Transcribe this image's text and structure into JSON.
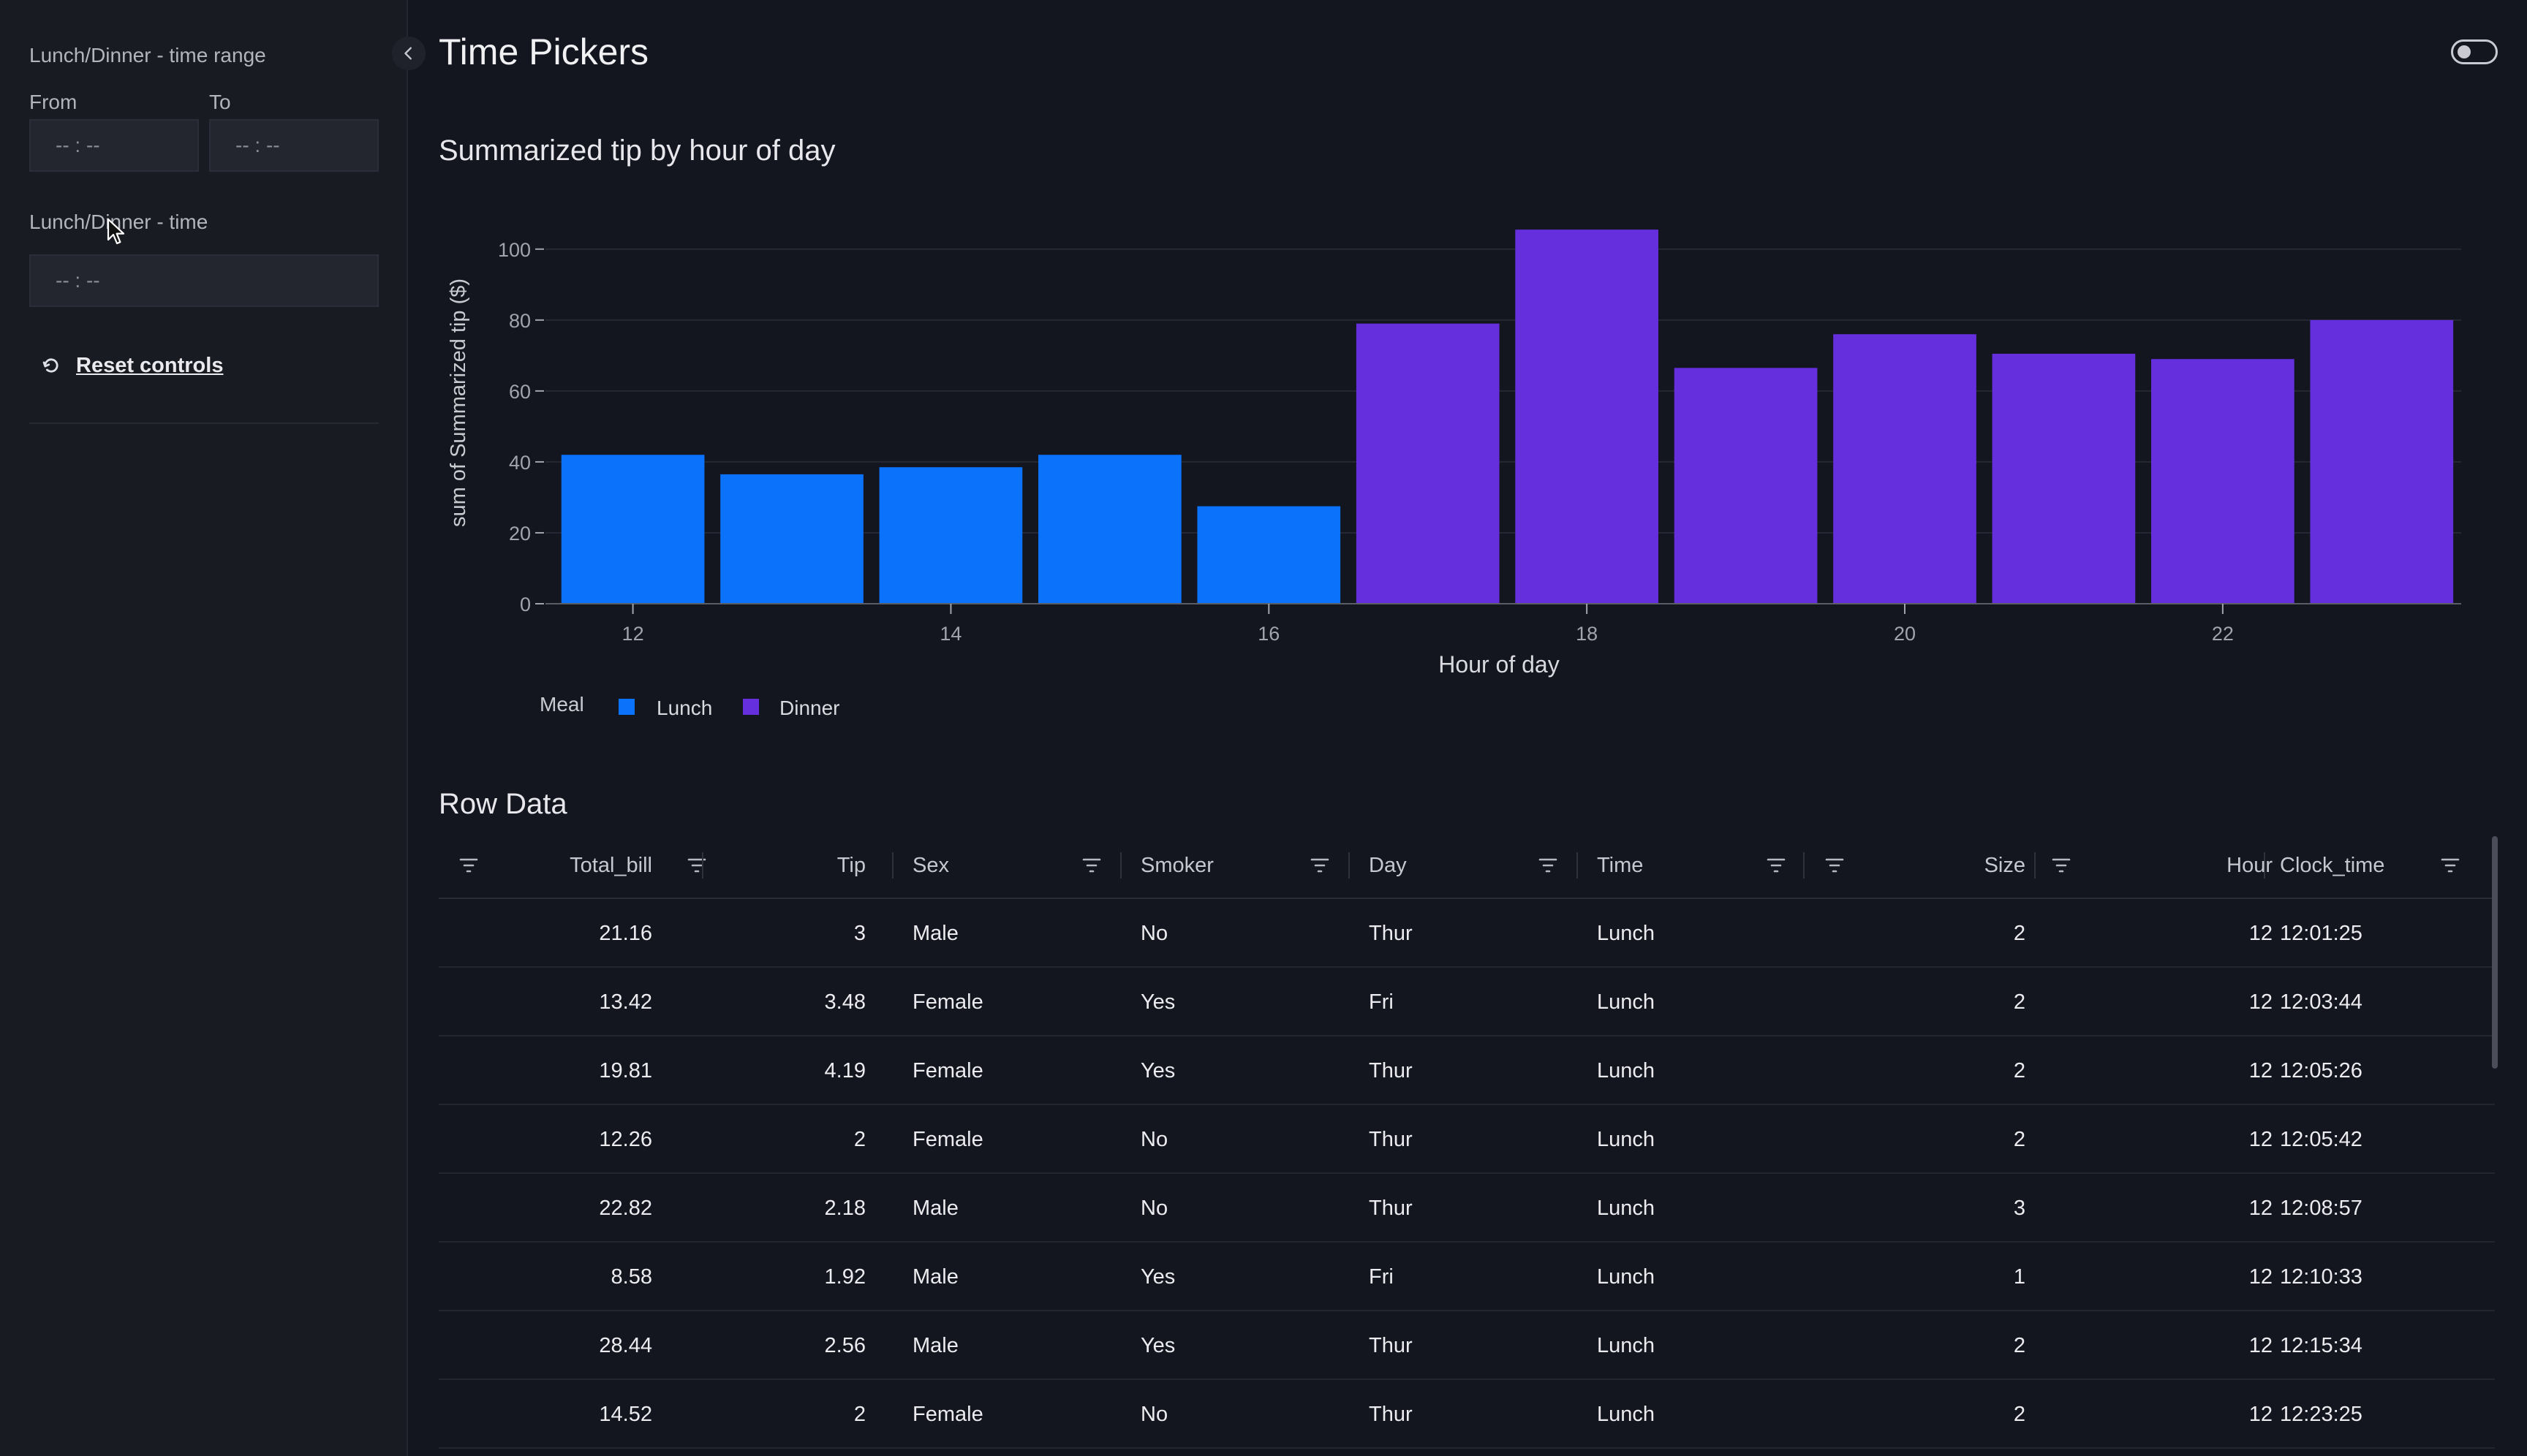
{
  "sidebar": {
    "range_label": "Lunch/Dinner - time range",
    "from_label": "From",
    "to_label": "To",
    "from_placeholder": "-- : --",
    "to_placeholder": "-- : --",
    "time_label": "Lunch/Dinner - time",
    "time_placeholder": "-- : --",
    "reset_label": "Reset controls"
  },
  "header": {
    "title": "Time Pickers"
  },
  "chart_section": {
    "title": "Summarized tip by hour of day"
  },
  "chart_data": {
    "type": "bar",
    "title": "Summarized tip by hour of day",
    "xlabel": "Hour of day",
    "ylabel": "sum of Summarized tip ($)",
    "x": [
      12,
      13,
      14,
      15,
      16,
      17,
      18,
      19,
      20,
      21,
      22,
      23
    ],
    "series": [
      {
        "name": "Lunch",
        "x": [
          12,
          13,
          14,
          15,
          16
        ],
        "values": [
          42,
          36.5,
          38.5,
          42,
          27.5
        ]
      },
      {
        "name": "Dinner",
        "x": [
          17,
          18,
          19,
          20,
          21,
          22,
          23
        ],
        "values": [
          79,
          105.5,
          66.5,
          76,
          70.5,
          69,
          80
        ]
      }
    ],
    "ylim": [
      0,
      108
    ],
    "xlim": [
      11.45,
      23.5
    ],
    "yticks": [
      0,
      20,
      40,
      60,
      80,
      100
    ],
    "xticks": [
      12,
      14,
      16,
      18,
      20,
      22
    ],
    "legend": {
      "title": "Meal",
      "position": "bottom-left"
    },
    "colors": {
      "Lunch": "#0b72fb",
      "Dinner": "#652fdd",
      "grid": "#252834",
      "axis": "#a2a4ad"
    },
    "grid": true
  },
  "table": {
    "title": "Row Data",
    "columns": [
      "Total_bill",
      "Tip",
      "Sex",
      "Smoker",
      "Day",
      "Time",
      "Size",
      "Hour",
      "Clock_time"
    ],
    "rows": [
      [
        "21.16",
        "3",
        "Male",
        "No",
        "Thur",
        "Lunch",
        "2",
        "12",
        "12:01:25"
      ],
      [
        "13.42",
        "3.48",
        "Female",
        "Yes",
        "Fri",
        "Lunch",
        "2",
        "12",
        "12:03:44"
      ],
      [
        "19.81",
        "4.19",
        "Female",
        "Yes",
        "Thur",
        "Lunch",
        "2",
        "12",
        "12:05:26"
      ],
      [
        "12.26",
        "2",
        "Female",
        "No",
        "Thur",
        "Lunch",
        "2",
        "12",
        "12:05:42"
      ],
      [
        "22.82",
        "2.18",
        "Male",
        "No",
        "Thur",
        "Lunch",
        "3",
        "12",
        "12:08:57"
      ],
      [
        "8.58",
        "1.92",
        "Male",
        "Yes",
        "Fri",
        "Lunch",
        "1",
        "12",
        "12:10:33"
      ],
      [
        "28.44",
        "2.56",
        "Male",
        "Yes",
        "Thur",
        "Lunch",
        "2",
        "12",
        "12:15:34"
      ],
      [
        "14.52",
        "2",
        "Female",
        "No",
        "Thur",
        "Lunch",
        "2",
        "12",
        "12:23:25"
      ]
    ]
  }
}
